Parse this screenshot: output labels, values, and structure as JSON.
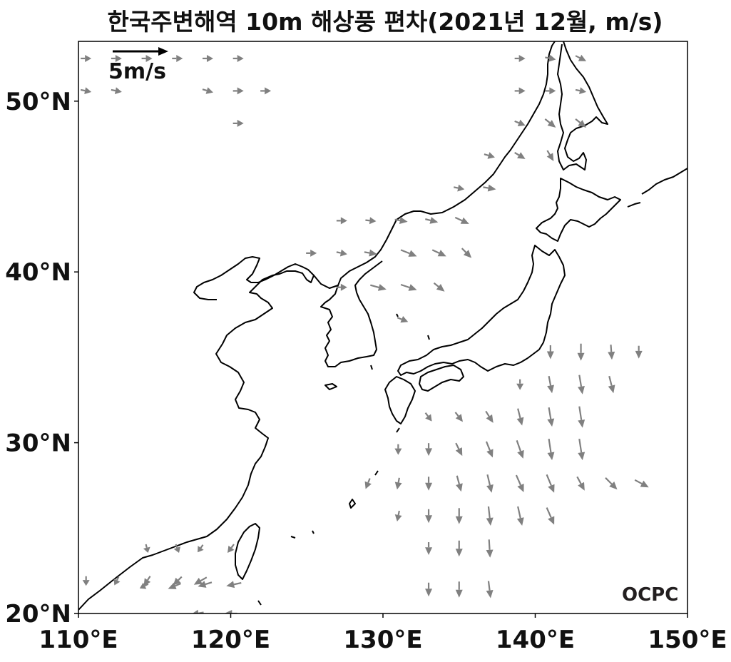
{
  "title": "한국주변해역 10m 해상풍 편차(2021년 12월, m/s)",
  "reference_vector": {
    "label": "5m/s",
    "magnitude": 5
  },
  "logo": "OCPC",
  "colors": {
    "arrows": "#808080",
    "coast": "#000000",
    "frame": "#000000"
  },
  "map": {
    "lon_range": [
      110,
      150
    ],
    "lat_range": [
      20,
      53.5
    ],
    "lon_ticks": [
      {
        "value": 110,
        "label": "110°E"
      },
      {
        "value": 120,
        "label": "120°E"
      },
      {
        "value": 130,
        "label": "130°E"
      },
      {
        "value": 140,
        "label": "140°E"
      },
      {
        "value": 150,
        "label": "150°E"
      }
    ],
    "lat_ticks": [
      {
        "value": 20,
        "label": "20°N"
      },
      {
        "value": 30,
        "label": "30°N"
      },
      {
        "value": 40,
        "label": "40°N"
      },
      {
        "value": 50,
        "label": "50°N"
      }
    ]
  },
  "wind_vectors": [
    {
      "lon": 110.5,
      "lat": 52.5,
      "u": 1.0,
      "v": 0.0
    },
    {
      "lon": 112.5,
      "lat": 52.5,
      "u": 1.0,
      "v": 0.0
    },
    {
      "lon": 114.5,
      "lat": 52.5,
      "u": 1.0,
      "v": 0.0
    },
    {
      "lon": 116.5,
      "lat": 52.5,
      "u": 1.0,
      "v": 0.0
    },
    {
      "lon": 118.5,
      "lat": 52.5,
      "u": 1.0,
      "v": 0.0
    },
    {
      "lon": 120.5,
      "lat": 52.5,
      "u": 1.0,
      "v": 0.0
    },
    {
      "lon": 110.5,
      "lat": 50.6,
      "u": 1.0,
      "v": -0.2
    },
    {
      "lon": 112.5,
      "lat": 50.6,
      "u": 1.0,
      "v": -0.2
    },
    {
      "lon": 118.5,
      "lat": 50.6,
      "u": 1.0,
      "v": -0.3
    },
    {
      "lon": 120.5,
      "lat": 50.6,
      "u": 1.0,
      "v": 0.0
    },
    {
      "lon": 122.3,
      "lat": 50.6,
      "u": 1.0,
      "v": 0.0
    },
    {
      "lon": 120.5,
      "lat": 48.7,
      "u": 1.0,
      "v": 0.0
    },
    {
      "lon": 139.0,
      "lat": 52.5,
      "u": 1.0,
      "v": 0.0
    },
    {
      "lon": 141.0,
      "lat": 52.5,
      "u": 1.0,
      "v": -0.2
    },
    {
      "lon": 143.0,
      "lat": 52.5,
      "u": 1.0,
      "v": -0.5
    },
    {
      "lon": 139.0,
      "lat": 50.6,
      "u": 1.0,
      "v": 0.0
    },
    {
      "lon": 141.0,
      "lat": 50.6,
      "u": 1.0,
      "v": 0.0
    },
    {
      "lon": 143.0,
      "lat": 50.6,
      "u": 1.0,
      "v": -0.2
    },
    {
      "lon": 139.0,
      "lat": 48.7,
      "u": 1.0,
      "v": -0.4
    },
    {
      "lon": 141.0,
      "lat": 48.7,
      "u": 1.0,
      "v": -0.8
    },
    {
      "lon": 143.0,
      "lat": 48.7,
      "u": 1.0,
      "v": -0.8
    },
    {
      "lon": 137.0,
      "lat": 46.8,
      "u": 1.0,
      "v": -0.3
    },
    {
      "lon": 139.0,
      "lat": 46.8,
      "u": 1.0,
      "v": -0.6
    },
    {
      "lon": 141.0,
      "lat": 46.8,
      "u": 0.6,
      "v": -1.0
    },
    {
      "lon": 135.0,
      "lat": 44.9,
      "u": 1.0,
      "v": -0.2
    },
    {
      "lon": 137.0,
      "lat": 44.9,
      "u": 1.2,
      "v": -0.2
    },
    {
      "lon": 127.3,
      "lat": 43.0,
      "u": 1.0,
      "v": 0.0
    },
    {
      "lon": 129.2,
      "lat": 43.0,
      "u": 1.0,
      "v": -0.1
    },
    {
      "lon": 131.2,
      "lat": 43.0,
      "u": 1.2,
      "v": -0.2
    },
    {
      "lon": 133.2,
      "lat": 43.0,
      "u": 1.2,
      "v": -0.3
    },
    {
      "lon": 135.2,
      "lat": 43.0,
      "u": 1.3,
      "v": -0.6
    },
    {
      "lon": 125.3,
      "lat": 41.1,
      "u": 1.0,
      "v": 0.0
    },
    {
      "lon": 127.3,
      "lat": 41.1,
      "u": 1.0,
      "v": -0.2
    },
    {
      "lon": 129.2,
      "lat": 41.1,
      "u": 1.2,
      "v": -0.2
    },
    {
      "lon": 131.7,
      "lat": 41.1,
      "u": 1.5,
      "v": -0.6
    },
    {
      "lon": 133.7,
      "lat": 41.1,
      "u": 1.3,
      "v": -0.6
    },
    {
      "lon": 135.5,
      "lat": 41.1,
      "u": 0.9,
      "v": -0.9
    },
    {
      "lon": 127.3,
      "lat": 39.1,
      "u": 1.0,
      "v": 0.0
    },
    {
      "lon": 129.7,
      "lat": 39.1,
      "u": 1.5,
      "v": -0.4
    },
    {
      "lon": 131.7,
      "lat": 39.1,
      "u": 1.5,
      "v": -0.5
    },
    {
      "lon": 133.7,
      "lat": 39.1,
      "u": 1.0,
      "v": -0.8
    },
    {
      "lon": 131.3,
      "lat": 37.2,
      "u": 1.0,
      "v": -0.4
    },
    {
      "lon": 141.0,
      "lat": 35.3,
      "u": 0.0,
      "v": -1.3
    },
    {
      "lon": 143.0,
      "lat": 35.3,
      "u": 0.0,
      "v": -1.6
    },
    {
      "lon": 145.0,
      "lat": 35.3,
      "u": 0.1,
      "v": -1.4
    },
    {
      "lon": 146.8,
      "lat": 35.3,
      "u": 0.0,
      "v": -1.2
    },
    {
      "lon": 139.0,
      "lat": 33.4,
      "u": 0.0,
      "v": -1.0
    },
    {
      "lon": 141.0,
      "lat": 33.4,
      "u": 0.3,
      "v": -1.6
    },
    {
      "lon": 143.0,
      "lat": 33.4,
      "u": 0.3,
      "v": -1.8
    },
    {
      "lon": 145.0,
      "lat": 33.4,
      "u": 0.4,
      "v": -1.6
    },
    {
      "lon": 133.0,
      "lat": 31.5,
      "u": 0.6,
      "v": -0.8
    },
    {
      "lon": 135.0,
      "lat": 31.5,
      "u": 0.7,
      "v": -0.9
    },
    {
      "lon": 137.0,
      "lat": 31.5,
      "u": 0.7,
      "v": -1.1
    },
    {
      "lon": 139.0,
      "lat": 31.5,
      "u": 0.4,
      "v": -1.6
    },
    {
      "lon": 141.0,
      "lat": 31.5,
      "u": 0.3,
      "v": -1.8
    },
    {
      "lon": 143.0,
      "lat": 31.5,
      "u": 0.3,
      "v": -2.0
    },
    {
      "lon": 131.0,
      "lat": 29.6,
      "u": 0.0,
      "v": -1.0
    },
    {
      "lon": 133.0,
      "lat": 29.6,
      "u": 0.0,
      "v": -1.2
    },
    {
      "lon": 135.0,
      "lat": 29.6,
      "u": 0.6,
      "v": -1.2
    },
    {
      "lon": 137.0,
      "lat": 29.6,
      "u": 0.6,
      "v": -1.5
    },
    {
      "lon": 139.0,
      "lat": 29.6,
      "u": 0.6,
      "v": -1.7
    },
    {
      "lon": 141.0,
      "lat": 29.6,
      "u": 0.3,
      "v": -2.0
    },
    {
      "lon": 143.0,
      "lat": 29.6,
      "u": 0.3,
      "v": -2.0
    },
    {
      "lon": 129.0,
      "lat": 27.6,
      "u": -0.4,
      "v": -1.0
    },
    {
      "lon": 131.0,
      "lat": 27.6,
      "u": -0.2,
      "v": -1.1
    },
    {
      "lon": 133.0,
      "lat": 27.6,
      "u": 0.0,
      "v": -1.3
    },
    {
      "lon": 135.0,
      "lat": 27.6,
      "u": 0.4,
      "v": -1.5
    },
    {
      "lon": 137.0,
      "lat": 27.6,
      "u": 0.4,
      "v": -1.7
    },
    {
      "lon": 139.0,
      "lat": 27.6,
      "u": 0.7,
      "v": -1.6
    },
    {
      "lon": 141.0,
      "lat": 27.6,
      "u": 0.7,
      "v": -1.7
    },
    {
      "lon": 143.0,
      "lat": 27.6,
      "u": 0.7,
      "v": -1.3
    },
    {
      "lon": 145.0,
      "lat": 27.6,
      "u": 1.1,
      "v": -1.1
    },
    {
      "lon": 147.0,
      "lat": 27.6,
      "u": 1.3,
      "v": -0.7
    },
    {
      "lon": 131.0,
      "lat": 25.7,
      "u": -0.2,
      "v": -1.0
    },
    {
      "lon": 133.0,
      "lat": 25.7,
      "u": 0.0,
      "v": -1.3
    },
    {
      "lon": 135.0,
      "lat": 25.7,
      "u": 0.0,
      "v": -1.5
    },
    {
      "lon": 137.0,
      "lat": 25.7,
      "u": 0.2,
      "v": -1.8
    },
    {
      "lon": 139.0,
      "lat": 25.7,
      "u": 0.4,
      "v": -1.8
    },
    {
      "lon": 141.0,
      "lat": 25.7,
      "u": 0.7,
      "v": -1.6
    },
    {
      "lon": 133.0,
      "lat": 23.8,
      "u": 0.0,
      "v": -1.2
    },
    {
      "lon": 135.0,
      "lat": 23.8,
      "u": 0.0,
      "v": -1.5
    },
    {
      "lon": 137.0,
      "lat": 23.8,
      "u": 0.1,
      "v": -1.7
    },
    {
      "lon": 133.0,
      "lat": 21.4,
      "u": 0.0,
      "v": -1.3
    },
    {
      "lon": 135.0,
      "lat": 21.4,
      "u": 0.0,
      "v": -1.5
    },
    {
      "lon": 137.0,
      "lat": 21.4,
      "u": 0.2,
      "v": -1.6
    },
    {
      "lon": 114.5,
      "lat": 23.8,
      "u": 0.2,
      "v": -0.8
    },
    {
      "lon": 116.5,
      "lat": 23.8,
      "u": 0.3,
      "v": -0.8
    },
    {
      "lon": 118.0,
      "lat": 23.8,
      "u": -0.5,
      "v": -0.7
    },
    {
      "lon": 120.0,
      "lat": 23.8,
      "u": -0.6,
      "v": -0.8
    },
    {
      "lon": 110.5,
      "lat": 21.9,
      "u": 0.0,
      "v": -0.9
    },
    {
      "lon": 112.5,
      "lat": 21.9,
      "u": -0.4,
      "v": -0.8
    },
    {
      "lon": 114.5,
      "lat": 21.9,
      "u": -0.6,
      "v": -0.9
    },
    {
      "lon": 116.5,
      "lat": 21.9,
      "u": -0.8,
      "v": -0.8
    },
    {
      "lon": 118.0,
      "lat": 21.9,
      "u": -1.2,
      "v": -0.7
    },
    {
      "lon": 114.3,
      "lat": 21.6,
      "u": -0.8,
      "v": -0.4
    },
    {
      "lon": 116.3,
      "lat": 21.6,
      "u": -1.2,
      "v": -0.5
    },
    {
      "lon": 118.3,
      "lat": 21.7,
      "u": -1.3,
      "v": -0.4
    },
    {
      "lon": 120.2,
      "lat": 21.7,
      "u": -1.4,
      "v": -0.3
    },
    {
      "lon": 117.8,
      "lat": 20.0,
      "u": -1.2,
      "v": -0.2
    },
    {
      "lon": 120.0,
      "lat": 20.0,
      "u": -1.2,
      "v": 0.0
    }
  ]
}
